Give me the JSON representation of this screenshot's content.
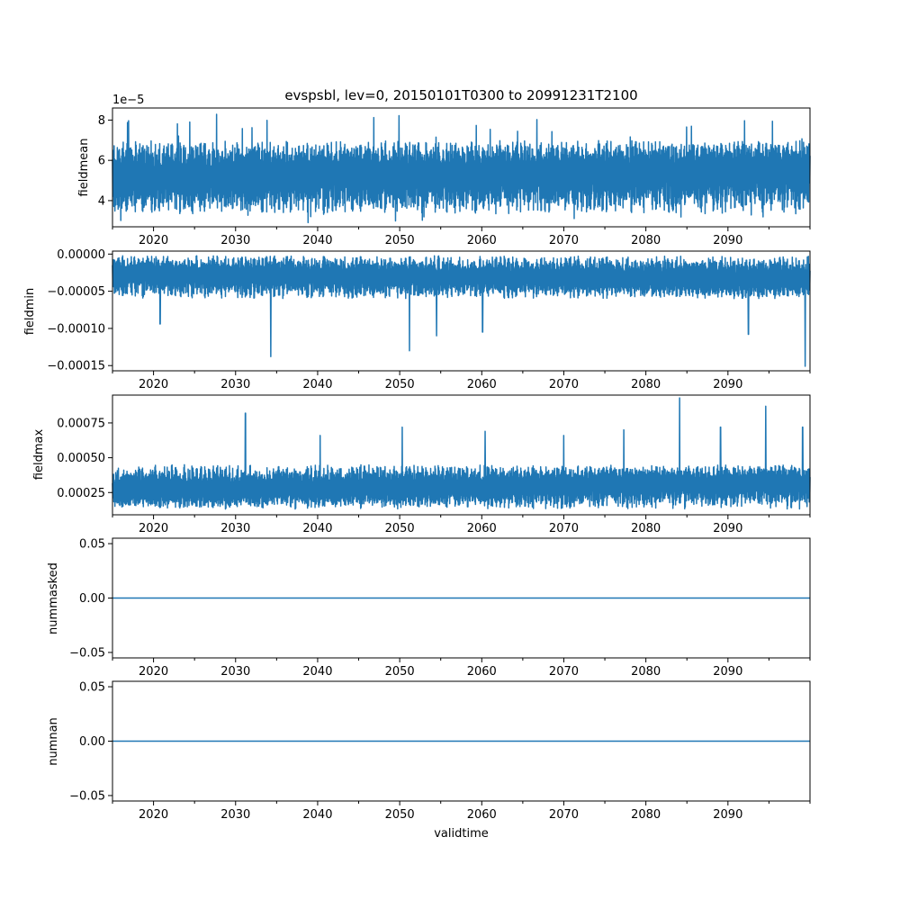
{
  "chart_data": [
    {
      "type": "line",
      "title": "evspsbl, lev=0, 20150101T0300 to 20991231T2100",
      "xlabel": "",
      "ylabel": "fieldmean",
      "offset_text": "1e−5",
      "xlim": [
        2015.0,
        2100.0
      ],
      "ylim": [
        2.7,
        8.6
      ],
      "x_ticks": [
        2020,
        2030,
        2040,
        2050,
        2060,
        2070,
        2080,
        2090
      ],
      "x_tick_labels": [
        "2020",
        "2030",
        "2040",
        "2050",
        "2060",
        "2070",
        "2080",
        "2090"
      ],
      "y_ticks": [
        4,
        6,
        8
      ],
      "y_tick_labels": [
        "4",
        "6",
        "8"
      ],
      "color": "#1f77b4",
      "series": [
        {
          "name": "fieldmean",
          "x": [
            2015,
            2020,
            2025,
            2030,
            2035,
            2040,
            2045,
            2050,
            2055,
            2060,
            2065,
            2070,
            2075,
            2080,
            2085,
            2090,
            2095,
            2100
          ],
          "values": [
            5.2,
            5.1,
            5.2,
            5.2,
            5.3,
            5.2,
            5.3,
            5.3,
            5.3,
            5.3,
            5.4,
            5.4,
            5.5,
            5.5,
            5.5,
            5.6,
            5.6,
            5.6
          ],
          "typical_range": [
            3.3,
            7.0
          ],
          "extreme_range": [
            2.9,
            8.3
          ]
        }
      ]
    },
    {
      "type": "line",
      "title": "",
      "xlabel": "",
      "ylabel": "fieldmin",
      "xlim": [
        2015.0,
        2100.0
      ],
      "ylim": [
        -0.000157,
        4e-06
      ],
      "x_ticks": [
        2020,
        2030,
        2040,
        2050,
        2060,
        2070,
        2080,
        2090
      ],
      "x_tick_labels": [
        "2020",
        "2030",
        "2040",
        "2050",
        "2060",
        "2070",
        "2080",
        "2090"
      ],
      "y_ticks": [
        0.0,
        -5e-05,
        -0.0001,
        -0.00015
      ],
      "y_tick_labels": [
        "0.00000",
        "−0.00005",
        "−0.00010",
        "−0.00015"
      ],
      "color": "#1f77b4",
      "series": [
        {
          "name": "fieldmin",
          "x": [
            2015,
            2020,
            2025,
            2030,
            2035,
            2040,
            2045,
            2050,
            2055,
            2060,
            2065,
            2070,
            2075,
            2080,
            2085,
            2090,
            2095,
            2100
          ],
          "values": [
            -2.5e-05,
            -2.6e-05,
            -2.7e-05,
            -2.8e-05,
            -2.8e-05,
            -2.9e-05,
            -3e-05,
            -3e-05,
            -3.1e-05,
            -3.1e-05,
            -3.2e-05,
            -3.2e-05,
            -3.3e-05,
            -3.4e-05,
            -3.4e-05,
            -3.5e-05,
            -3.5e-05,
            -3.6e-05
          ],
          "typical_range": [
            -6e-05,
            -2e-06
          ],
          "spikes": [
            {
              "x": 2020.8,
              "y": -9.4e-05
            },
            {
              "x": 2034.3,
              "y": -0.000138
            },
            {
              "x": 2051.2,
              "y": -0.00013
            },
            {
              "x": 2054.5,
              "y": -0.00011
            },
            {
              "x": 2060.1,
              "y": -0.000105
            },
            {
              "x": 2092.5,
              "y": -0.000108
            },
            {
              "x": 2099.4,
              "y": -0.000151
            }
          ]
        }
      ]
    },
    {
      "type": "line",
      "title": "",
      "xlabel": "",
      "ylabel": "fieldmax",
      "xlim": [
        2015.0,
        2100.0
      ],
      "ylim": [
        9e-05,
        0.00095
      ],
      "x_ticks": [
        2020,
        2030,
        2040,
        2050,
        2060,
        2070,
        2080,
        2090
      ],
      "x_tick_labels": [
        "2020",
        "2030",
        "2040",
        "2050",
        "2060",
        "2070",
        "2080",
        "2090"
      ],
      "y_ticks": [
        0.00025,
        0.0005,
        0.00075
      ],
      "y_tick_labels": [
        "0.00025",
        "0.00050",
        "0.00075"
      ],
      "color": "#1f77b4",
      "series": [
        {
          "name": "fieldmax",
          "x": [
            2015,
            2020,
            2025,
            2030,
            2035,
            2040,
            2045,
            2050,
            2055,
            2060,
            2065,
            2070,
            2075,
            2080,
            2085,
            2090,
            2095,
            2100
          ],
          "values": [
            0.00025,
            0.00025,
            0.00026,
            0.00026,
            0.00027,
            0.00027,
            0.00028,
            0.00028,
            0.00029,
            0.00029,
            0.0003,
            0.0003,
            0.00031,
            0.00031,
            0.00032,
            0.00032,
            0.00033,
            0.00033
          ],
          "typical_range": [
            0.00013,
            0.00045
          ],
          "spikes": [
            {
              "x": 2031.2,
              "y": 0.00082
            },
            {
              "x": 2040.3,
              "y": 0.00066
            },
            {
              "x": 2050.3,
              "y": 0.00072
            },
            {
              "x": 2060.4,
              "y": 0.00069
            },
            {
              "x": 2070.0,
              "y": 0.00066
            },
            {
              "x": 2077.3,
              "y": 0.0007
            },
            {
              "x": 2084.1,
              "y": 0.00093
            },
            {
              "x": 2089.1,
              "y": 0.00072
            },
            {
              "x": 2094.6,
              "y": 0.00087
            },
            {
              "x": 2099.1,
              "y": 0.00072
            }
          ]
        }
      ]
    },
    {
      "type": "line",
      "title": "",
      "xlabel": "",
      "ylabel": "nummasked",
      "xlim": [
        2015.0,
        2100.0
      ],
      "ylim": [
        -0.055,
        0.055
      ],
      "x_ticks": [
        2020,
        2030,
        2040,
        2050,
        2060,
        2070,
        2080,
        2090
      ],
      "x_tick_labels": [
        "2020",
        "2030",
        "2040",
        "2050",
        "2060",
        "2070",
        "2080",
        "2090"
      ],
      "y_ticks": [
        0.05,
        0.0,
        -0.05
      ],
      "y_tick_labels": [
        "0.05",
        "0.00",
        "−0.05"
      ],
      "color": "#1f77b4",
      "series": [
        {
          "name": "nummasked",
          "x": [
            2015,
            2100
          ],
          "values": [
            0,
            0
          ]
        }
      ]
    },
    {
      "type": "line",
      "title": "",
      "xlabel": "validtime",
      "ylabel": "numnan",
      "xlim": [
        2015.0,
        2100.0
      ],
      "ylim": [
        -0.055,
        0.055
      ],
      "x_ticks": [
        2020,
        2030,
        2040,
        2050,
        2060,
        2070,
        2080,
        2090
      ],
      "x_tick_labels": [
        "2020",
        "2030",
        "2040",
        "2050",
        "2060",
        "2070",
        "2080",
        "2090"
      ],
      "y_ticks": [
        0.05,
        0.0,
        -0.05
      ],
      "y_tick_labels": [
        "0.05",
        "0.00",
        "−0.05"
      ],
      "color": "#1f77b4",
      "series": [
        {
          "name": "numnan",
          "x": [
            2015,
            2100
          ],
          "values": [
            0,
            0
          ]
        }
      ]
    }
  ]
}
